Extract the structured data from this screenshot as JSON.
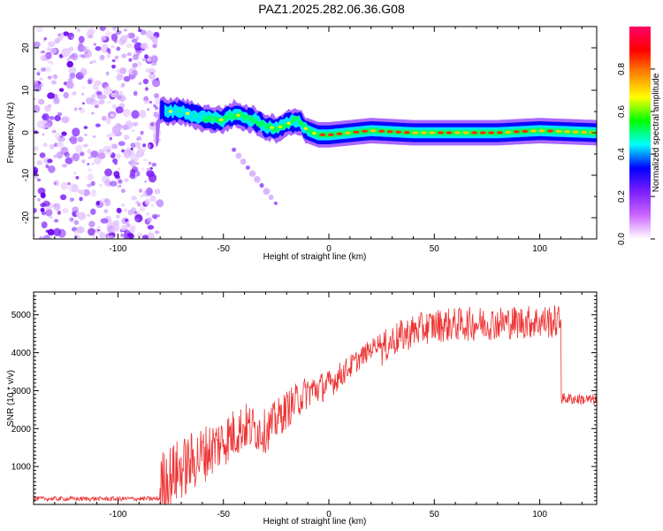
{
  "title": "PAZ1.2025.282.06.36.G08",
  "chart_data": [
    {
      "type": "heatmap",
      "name": "spectrogram",
      "xlabel": "Height of straight line (km)",
      "ylabel": "Frequency (Hz)",
      "xlim": [
        -140,
        127
      ],
      "ylim": [
        -25,
        25
      ],
      "xticks": [
        -100,
        -50,
        0,
        50,
        100
      ],
      "yticks": [
        -20,
        -10,
        0,
        10,
        20
      ],
      "colorbar": {
        "label": "Normalized spectral amplitude",
        "range": [
          0,
          1
        ],
        "ticks": [
          0.0,
          0.2,
          0.4,
          0.6,
          0.8
        ],
        "colors": [
          "#ffffff",
          "#cc66ff",
          "#7a1fff",
          "#0000ff",
          "#00ffff",
          "#00ff00",
          "#ffff00",
          "#ff8800",
          "#ff0000",
          "#ff0066"
        ]
      },
      "trace": [
        [
          -80,
          5
        ],
        [
          -70,
          5
        ],
        [
          -60,
          3.5
        ],
        [
          -50,
          3
        ],
        [
          -45,
          4.5
        ],
        [
          -40,
          3.5
        ],
        [
          -35,
          3
        ],
        [
          -30,
          1.5
        ],
        [
          -25,
          1
        ],
        [
          -20,
          2
        ],
        [
          -15,
          3
        ],
        [
          -10,
          0.5
        ],
        [
          -5,
          -0.5
        ],
        [
          0,
          -0.5
        ],
        [
          10,
          0
        ],
        [
          20,
          0.5
        ],
        [
          40,
          0
        ],
        [
          60,
          0
        ],
        [
          80,
          0
        ],
        [
          100,
          0.5
        ],
        [
          127,
          0
        ]
      ],
      "noise_region_x": [
        -140,
        -80
      ]
    },
    {
      "type": "line",
      "name": "snr",
      "xlabel": "Height of straight line (km)",
      "ylabel": "SNR (10 * v/v)",
      "xlim": [
        -140,
        127
      ],
      "ylim": [
        0,
        5600
      ],
      "xticks": [
        -100,
        -50,
        0,
        50,
        100
      ],
      "yticks": [
        1000,
        2000,
        3000,
        4000,
        5000
      ],
      "color": "#ee3333",
      "envelope": [
        [
          -140,
          150
        ],
        [
          -80,
          150
        ],
        [
          -75,
          400
        ],
        [
          -60,
          1000
        ],
        [
          -50,
          1400
        ],
        [
          -40,
          1800
        ],
        [
          -30,
          1700
        ],
        [
          -20,
          2300
        ],
        [
          -10,
          2800
        ],
        [
          0,
          3000
        ],
        [
          10,
          3500
        ],
        [
          20,
          4000
        ],
        [
          30,
          4500
        ],
        [
          40,
          4750
        ],
        [
          50,
          4900
        ],
        [
          70,
          4950
        ],
        [
          100,
          5000
        ],
        [
          110,
          5000
        ],
        [
          110,
          2800
        ],
        [
          127,
          2750
        ]
      ]
    }
  ]
}
